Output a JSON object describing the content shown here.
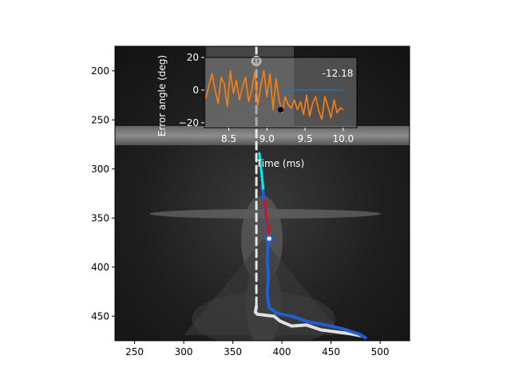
{
  "chart_data": [
    {
      "type": "scatter",
      "title": "",
      "xlabel": "",
      "ylabel": "",
      "xlim": [
        230,
        530
      ],
      "ylim": [
        475,
        175
      ],
      "x_ticks": [
        250,
        300,
        350,
        400,
        450,
        500
      ],
      "y_ticks": [
        200,
        250,
        300,
        350,
        400,
        450
      ],
      "y_inverted": true,
      "background": "grayscale high-speed camera frame",
      "series": [
        {
          "role": "reference-line",
          "color": "#e6e6e6",
          "style": "dashed",
          "x": [
            374,
            374
          ],
          "y": [
            175,
            440
          ]
        },
        {
          "role": "track-white",
          "color": "#e0e0e0",
          "x": [
            374,
            373,
            375,
            383,
            392,
            398,
            410,
            425,
            440,
            455,
            470,
            480
          ],
          "y": [
            440,
            446,
            448,
            449,
            450,
            455,
            460,
            459,
            464,
            466,
            468,
            470
          ]
        },
        {
          "role": "track-blue",
          "color": "#1f5fd6",
          "x": [
            380,
            384,
            386,
            385,
            386,
            385,
            387,
            395,
            410,
            428,
            445,
            462,
            478,
            485
          ],
          "y": [
            318,
            350,
            372,
            392,
            410,
            428,
            441,
            447,
            450,
            456,
            459,
            463,
            468,
            472
          ]
        },
        {
          "role": "segment-cyan",
          "color": "#00f0f0",
          "x": [
            377,
            381
          ],
          "y": [
            284,
            320
          ]
        },
        {
          "role": "segment-red",
          "color": "#e01010",
          "x": [
            382,
            387
          ],
          "y": [
            332,
            371
          ]
        }
      ],
      "markers": [
        {
          "name": "reference-ring",
          "x": 374,
          "y": 190,
          "color": "#ffffff"
        },
        {
          "name": "tip-marker",
          "x": 387,
          "y": 371,
          "color": "#1f5fd6"
        }
      ]
    },
    {
      "type": "line",
      "title": "",
      "xlabel": "Time (ms)",
      "ylabel": "Error angle (deg)",
      "xlim": [
        8.18,
        10.18
      ],
      "ylim": [
        -23,
        20
      ],
      "x_ticks": [
        "8.5",
        "9.0",
        "9.5",
        "10.0"
      ],
      "y_ticks": [
        "20",
        "0",
        "−20"
      ],
      "annotation": "-12.18",
      "series": [
        {
          "role": "error-angle",
          "color": "#ff7f0e",
          "x": [
            8.2,
            8.24,
            8.28,
            8.32,
            8.36,
            8.4,
            8.44,
            8.48,
            8.52,
            8.56,
            8.6,
            8.64,
            8.68,
            8.72,
            8.76,
            8.8,
            8.84,
            8.88,
            8.92,
            8.96,
            9.0,
            9.04,
            9.08,
            9.12,
            9.16,
            9.2,
            9.24,
            9.28,
            9.32,
            9.36,
            9.4,
            9.44,
            9.48,
            9.52,
            9.56,
            9.6,
            9.64,
            9.68,
            9.72,
            9.76,
            9.8,
            9.84,
            9.88,
            9.92,
            9.96,
            10.0
          ],
          "y": [
            -5,
            3,
            10,
            0,
            -8,
            8,
            4,
            -10,
            12,
            -2,
            6,
            -6,
            2,
            8,
            -7,
            0,
            11,
            -9,
            3,
            12,
            -4,
            10,
            -12,
            7,
            -6,
            -14,
            -4,
            -9,
            -11,
            -6,
            -12,
            -7,
            -15,
            -3,
            -16,
            -8,
            -4,
            -13,
            -18,
            -4,
            -10,
            -17,
            -6,
            -14,
            -11,
            -12
          ]
        },
        {
          "role": "zero-reference",
          "color": "#1f77b4",
          "x": [
            8.95,
            10.0
          ],
          "y": [
            0,
            0
          ]
        }
      ],
      "markers": [
        {
          "name": "current-point",
          "x": 9.18,
          "y": -12,
          "color": "#000000"
        }
      ]
    }
  ]
}
